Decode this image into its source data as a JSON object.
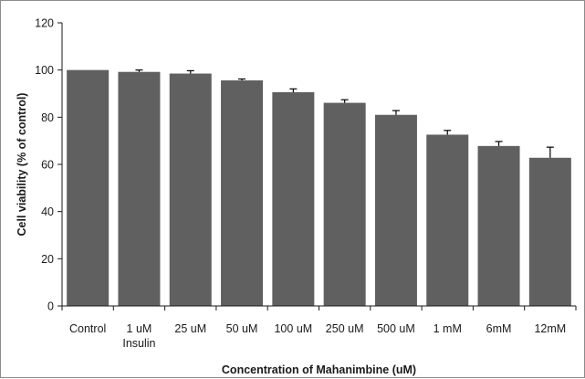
{
  "chart_data": {
    "type": "bar",
    "title": "",
    "xlabel": "Concentration of Mahanimbine (uM)",
    "ylabel": "Cell viability (% of control)",
    "categories": [
      [
        "Control"
      ],
      [
        "1 uM",
        "Insulin"
      ],
      [
        "25 uM"
      ],
      [
        "50 uM"
      ],
      [
        "100 uM"
      ],
      [
        "250 uM"
      ],
      [
        "500 uM"
      ],
      [
        "1 mM"
      ],
      [
        "6mM"
      ],
      [
        "12mM"
      ]
    ],
    "values": [
      100,
      99.2,
      98.5,
      95.6,
      90.6,
      86.1,
      81.0,
      72.6,
      67.8,
      62.8
    ],
    "errors": [
      0,
      0.8,
      1.2,
      0.6,
      1.4,
      1.3,
      1.8,
      1.8,
      1.9,
      4.5
    ],
    "ylim": [
      0,
      120
    ],
    "yticks": [
      0,
      20,
      40,
      60,
      80,
      100,
      120
    ],
    "grid": false,
    "bar_color": "#606060",
    "axis_color": "#1a1a1a"
  }
}
